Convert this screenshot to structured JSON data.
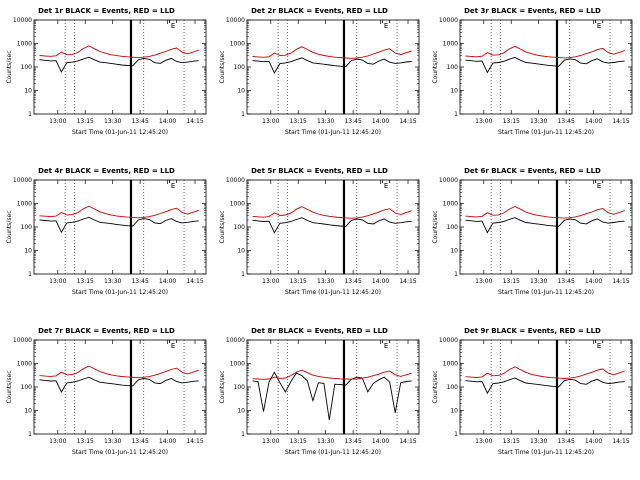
{
  "page": {
    "background": "#ffffff"
  },
  "axes_common": {
    "xlabel": "Start Time (01-Jun-11 12:45:20)",
    "ylabel": "Counts/sec",
    "xlim_minutes": [
      2,
      96
    ],
    "ylim": [
      1,
      10000
    ],
    "xticks": [
      {
        "m": 15,
        "label": "13:00"
      },
      {
        "m": 30,
        "label": "13:15"
      },
      {
        "m": 45,
        "label": "13:30"
      },
      {
        "m": 60,
        "label": "13:45"
      },
      {
        "m": 75,
        "label": "14:00"
      },
      {
        "m": 90,
        "label": "14:15"
      }
    ],
    "yticks": [
      1,
      10,
      100,
      1000,
      10000
    ],
    "dotted_vlines_minutes": [
      19,
      24,
      62,
      84
    ],
    "solid_vline_minute": 55,
    "annotation": {
      "label": "E",
      "m": 78,
      "tick_minutes": [
        76,
        80
      ]
    },
    "colors": {
      "events": "#000000",
      "lld": "#cc0000"
    },
    "x_minutes": [
      5,
      8,
      11,
      14,
      17,
      20,
      23,
      26,
      29,
      32,
      35,
      38,
      41,
      44,
      47,
      50,
      53,
      56,
      59,
      62,
      65,
      68,
      71,
      74,
      77,
      80,
      83,
      86,
      89,
      92
    ]
  },
  "chart_data": [
    {
      "type": "line",
      "title": "Det 1r BLACK = Events, RED = LLD",
      "series": [
        {
          "name": "Events",
          "color": "#000000",
          "values": [
            205,
            192,
            182,
            186,
            62,
            152,
            162,
            182,
            222,
            262,
            202,
            162,
            152,
            142,
            132,
            122,
            116,
            112,
            202,
            232,
            212,
            152,
            142,
            192,
            232,
            172,
            152,
            162,
            176,
            186
          ]
        },
        {
          "name": "LLD",
          "color": "#cc0000",
          "values": [
            310,
            295,
            285,
            300,
            430,
            330,
            345,
            420,
            610,
            790,
            600,
            455,
            385,
            335,
            305,
            285,
            272,
            262,
            252,
            262,
            282,
            322,
            385,
            455,
            565,
            645,
            425,
            365,
            435,
            525
          ]
        }
      ]
    },
    {
      "type": "line",
      "title": "Det 2r BLACK = Events, RED = LLD",
      "series": [
        {
          "name": "Events",
          "color": "#000000",
          "values": [
            188,
            178,
            168,
            174,
            56,
            140,
            150,
            168,
            205,
            245,
            188,
            150,
            140,
            132,
            122,
            114,
            108,
            104,
            188,
            216,
            198,
            142,
            132,
            178,
            216,
            160,
            142,
            150,
            164,
            172
          ]
        },
        {
          "name": "LLD",
          "color": "#cc0000",
          "values": [
            280,
            268,
            258,
            272,
            395,
            305,
            318,
            385,
            565,
            725,
            555,
            420,
            352,
            308,
            282,
            262,
            250,
            242,
            234,
            242,
            262,
            298,
            358,
            425,
            525,
            595,
            392,
            338,
            405,
            485
          ]
        }
      ]
    },
    {
      "type": "line",
      "title": "Det 3r BLACK = Events, RED = LLD",
      "series": [
        {
          "name": "Events",
          "color": "#000000",
          "values": [
            196,
            185,
            175,
            180,
            59,
            146,
            156,
            175,
            214,
            254,
            195,
            156,
            146,
            137,
            127,
            118,
            112,
            108,
            195,
            224,
            205,
            147,
            137,
            185,
            224,
            166,
            147,
            156,
            170,
            179
          ]
        },
        {
          "name": "LLD",
          "color": "#cc0000",
          "values": [
            295,
            282,
            272,
            288,
            410,
            318,
            332,
            402,
            588,
            758,
            578,
            438,
            368,
            322,
            294,
            274,
            260,
            252,
            244,
            252,
            272,
            310,
            372,
            440,
            545,
            620,
            408,
            352,
            420,
            505
          ]
        }
      ]
    },
    {
      "type": "line",
      "title": "Det 4r BLACK = Events, RED = LLD",
      "series": [
        {
          "name": "Events",
          "color": "#000000",
          "values": [
            200,
            189,
            179,
            183,
            60,
            149,
            159,
            179,
            218,
            258,
            199,
            159,
            149,
            139,
            129,
            120,
            114,
            110,
            199,
            228,
            209,
            149,
            139,
            189,
            228,
            169,
            149,
            159,
            173,
            183
          ]
        },
        {
          "name": "LLD",
          "color": "#cc0000",
          "values": [
            300,
            288,
            278,
            292,
            418,
            322,
            336,
            408,
            595,
            768,
            585,
            445,
            372,
            326,
            298,
            278,
            264,
            256,
            247,
            256,
            276,
            315,
            376,
            445,
            552,
            628,
            414,
            356,
            425,
            512
          ]
        }
      ]
    },
    {
      "type": "line",
      "title": "Det 5r BLACK = Events, RED = LLD",
      "series": [
        {
          "name": "Events",
          "color": "#000000",
          "values": [
            192,
            181,
            171,
            176,
            57,
            143,
            153,
            171,
            209,
            249,
            191,
            153,
            143,
            134,
            124,
            116,
            110,
            106,
            191,
            220,
            201,
            144,
            134,
            181,
            220,
            162,
            144,
            153,
            167,
            175
          ]
        },
        {
          "name": "LLD",
          "color": "#cc0000",
          "values": [
            285,
            272,
            262,
            278,
            400,
            310,
            324,
            392,
            572,
            738,
            562,
            426,
            356,
            312,
            286,
            266,
            253,
            245,
            237,
            245,
            265,
            302,
            362,
            430,
            532,
            602,
            396,
            342,
            410,
            492
          ]
        }
      ]
    },
    {
      "type": "line",
      "title": "Det 6r BLACK = Events, RED = LLD",
      "series": [
        {
          "name": "Events",
          "color": "#000000",
          "values": [
            194,
            183,
            173,
            178,
            58,
            145,
            155,
            173,
            211,
            251,
            193,
            155,
            145,
            136,
            126,
            117,
            111,
            107,
            193,
            222,
            203,
            145,
            136,
            183,
            222,
            164,
            145,
            155,
            169,
            177
          ]
        },
        {
          "name": "LLD",
          "color": "#cc0000",
          "values": [
            290,
            278,
            268,
            282,
            405,
            315,
            328,
            398,
            580,
            748,
            570,
            432,
            362,
            317,
            290,
            270,
            257,
            249,
            240,
            249,
            269,
            306,
            367,
            436,
            538,
            610,
            401,
            347,
            415,
            498
          ]
        }
      ]
    },
    {
      "type": "line",
      "title": "Det 7r BLACK = Events, RED = LLD",
      "series": [
        {
          "name": "Events",
          "color": "#000000",
          "values": [
            202,
            190,
            180,
            184,
            61,
            150,
            160,
            180,
            220,
            260,
            200,
            160,
            150,
            140,
            130,
            121,
            115,
            111,
            200,
            230,
            210,
            150,
            140,
            190,
            230,
            170,
            150,
            160,
            174,
            184
          ]
        },
        {
          "name": "LLD",
          "color": "#cc0000",
          "values": [
            305,
            292,
            282,
            296,
            425,
            326,
            340,
            414,
            602,
            778,
            592,
            450,
            378,
            330,
            301,
            281,
            268,
            258,
            249,
            258,
            278,
            318,
            380,
            450,
            558,
            636,
            420,
            360,
            430,
            518
          ]
        }
      ]
    },
    {
      "type": "line",
      "title": "Det 8r BLACK = Events, RED = LLD",
      "series": [
        {
          "name": "Events",
          "color": "#000000",
          "values": [
            182,
            172,
            9,
            162,
            425,
            152,
            62,
            172,
            385,
            305,
            182,
            26,
            152,
            142,
            4,
            132,
            126,
            121,
            212,
            262,
            242,
            62,
            142,
            202,
            262,
            162,
            8,
            152,
            172,
            182
          ]
        },
        {
          "name": "LLD",
          "color": "#cc0000",
          "values": [
            225,
            218,
            212,
            218,
            265,
            232,
            242,
            305,
            425,
            525,
            405,
            322,
            282,
            258,
            242,
            232,
            224,
            219,
            215,
            221,
            237,
            262,
            302,
            352,
            425,
            475,
            332,
            282,
            332,
            385
          ]
        }
      ]
    },
    {
      "type": "line",
      "title": "Det 9r BLACK = Events, RED = LLD",
      "series": [
        {
          "name": "Events",
          "color": "#000000",
          "values": [
            186,
            176,
            166,
            171,
            55,
            138,
            148,
            166,
            202,
            242,
            186,
            148,
            138,
            130,
            120,
            112,
            106,
            102,
            186,
            213,
            196,
            140,
            130,
            176,
            213,
            158,
            140,
            148,
            162,
            170
          ]
        },
        {
          "name": "LLD",
          "color": "#cc0000",
          "values": [
            275,
            264,
            254,
            268,
            388,
            300,
            313,
            380,
            558,
            718,
            548,
            418,
            348,
            305,
            279,
            259,
            247,
            239,
            231,
            239,
            259,
            294,
            354,
            420,
            518,
            588,
            386,
            333,
            400,
            478
          ]
        }
      ]
    }
  ]
}
